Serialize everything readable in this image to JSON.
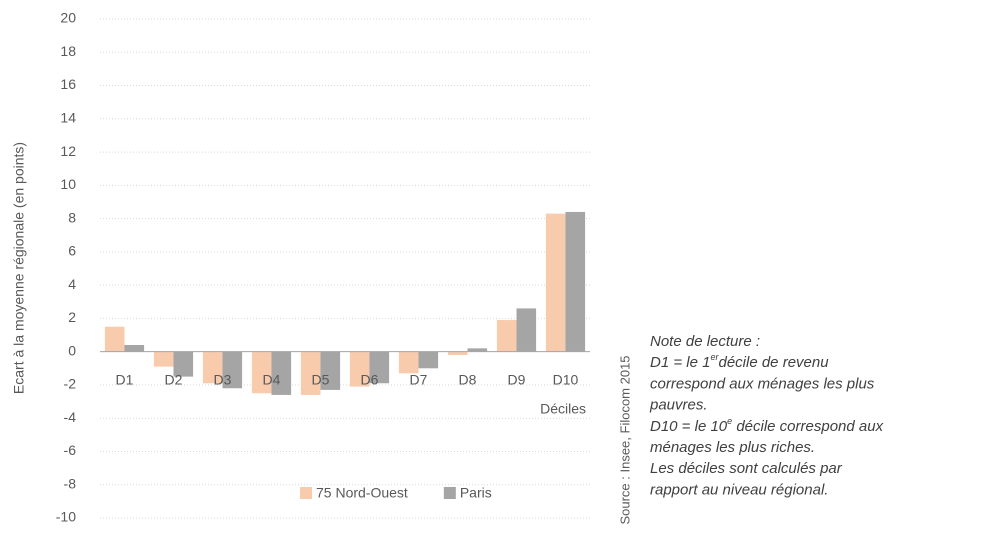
{
  "chart_data": {
    "type": "bar",
    "y_axis_label": "Ecart à la moyenne régionale (en points)",
    "x_axis_label": "Déciles",
    "source": "Source : Insee, Filocom 2015",
    "categories": [
      "D1",
      "D2",
      "D3",
      "D4",
      "D5",
      "D6",
      "D7",
      "D8",
      "D9",
      "D10"
    ],
    "series": [
      {
        "name": "75 Nord-Ouest",
        "color": "#f8cbad",
        "values": [
          1.5,
          -0.9,
          -1.9,
          -2.5,
          -2.6,
          -2.1,
          -1.3,
          -0.2,
          1.9,
          8.3
        ]
      },
      {
        "name": "Paris",
        "color": "#a5a5a5",
        "values": [
          0.4,
          -1.5,
          -2.2,
          -2.6,
          -2.3,
          -1.9,
          -1.0,
          0.2,
          2.6,
          8.4
        ]
      }
    ],
    "ylim": [
      -10,
      20
    ],
    "yticks": [
      -10,
      -8,
      -6,
      -4,
      -2,
      0,
      2,
      4,
      6,
      8,
      10,
      12,
      14,
      16,
      18,
      20
    ],
    "grid": true,
    "legend": "bottom",
    "note": [
      [
        "Note de lecture :"
      ],
      [
        "D1 = le 1",
        "er",
        "décile de revenu"
      ],
      [
        "correspond aux ménages les plus"
      ],
      [
        "pauvres."
      ],
      [
        "D10 = le 10",
        "e",
        " décile correspond aux"
      ],
      [
        "ménages les plus riches."
      ],
      [
        "Les déciles sont calculés par"
      ],
      [
        "rapport au niveau régional."
      ]
    ]
  }
}
